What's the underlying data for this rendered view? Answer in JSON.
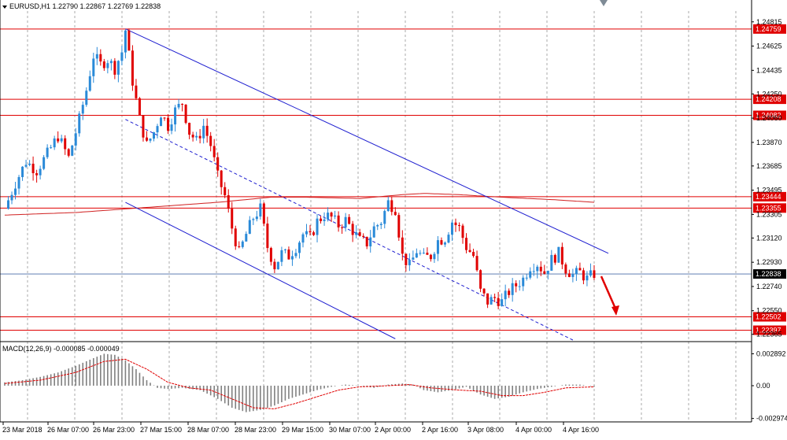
{
  "window": {
    "symbol_label": "EURUSD,H1  1.22790 1.22867 1.22769 1.22838"
  },
  "macd": {
    "label": "MACD(12,26,9) -0.000085 -0.000049"
  },
  "chart_data": [
    {
      "type": "candlestick",
      "symbol": "EURUSD",
      "timeframe": "H1",
      "ohlc_last": {
        "open": 1.2279,
        "high": 1.22867,
        "low": 1.22769,
        "close": 1.22838
      },
      "ylim": [
        1.2232,
        1.249
      ],
      "price_scale_ticks": [
        "1.24815",
        "1.24625",
        "1.24435",
        "1.24250",
        "1.24060",
        "1.23870",
        "1.23685",
        "1.23495",
        "1.23305",
        "1.23120",
        "1.22930",
        "1.22740",
        "1.22550",
        "1.22365"
      ],
      "x_ticks": [
        "23 Mar 2018",
        "26 Mar 07:00",
        "26 Mar 23:00",
        "27 Mar 15:00",
        "28 Mar 07:00",
        "28 Mar 23:00",
        "29 Mar 15:00",
        "30 Mar 07:00",
        "2 Apr 00:00",
        "2 Apr 16:00",
        "3 Apr 08:00",
        "4 Apr 00:00",
        "4 Apr 16:00"
      ],
      "horizontal_levels": [
        {
          "value": "1.24759",
          "price": 1.24759
        },
        {
          "value": "1.24208",
          "price": 1.24208
        },
        {
          "value": "1.24082",
          "price": 1.24082
        },
        {
          "value": "1.23444",
          "price": 1.23444
        },
        {
          "value": "1.23355",
          "price": 1.23355
        },
        {
          "value": "1.22502",
          "price": 1.22502
        },
        {
          "value": "1.22397",
          "price": 1.22397
        }
      ],
      "current_price_tag": "1.22838",
      "close_path": [
        [
          0,
          1.2335
        ],
        [
          3,
          1.2355
        ],
        [
          6,
          1.2372
        ],
        [
          9,
          1.2365
        ],
        [
          12,
          1.2378
        ],
        [
          15,
          1.2392
        ],
        [
          18,
          1.2375
        ],
        [
          21,
          1.2405
        ],
        [
          23,
          1.2428
        ],
        [
          25,
          1.2455
        ],
        [
          27,
          1.2448
        ],
        [
          29,
          1.2452
        ],
        [
          31,
          1.2445
        ],
        [
          33,
          1.2458
        ],
        [
          34,
          1.2475
        ],
        [
          35,
          1.2455
        ],
        [
          36,
          1.2435
        ],
        [
          38,
          1.2405
        ],
        [
          40,
          1.2385
        ],
        [
          42,
          1.2395
        ],
        [
          44,
          1.241
        ],
        [
          46,
          1.24
        ],
        [
          48,
          1.2412
        ],
        [
          50,
          1.2418
        ],
        [
          52,
          1.2395
        ],
        [
          54,
          1.2388
        ],
        [
          56,
          1.24
        ],
        [
          58,
          1.2385
        ],
        [
          60,
          1.236
        ],
        [
          62,
          1.2345
        ],
        [
          64,
          1.232
        ],
        [
          66,
          1.23
        ],
        [
          68,
          1.2315
        ],
        [
          70,
          1.2328
        ],
        [
          72,
          1.2335
        ],
        [
          74,
          1.2305
        ],
        [
          76,
          1.229
        ],
        [
          78,
          1.23
        ],
        [
          80,
          1.2298
        ],
        [
          82,
          1.2305
        ],
        [
          84,
          1.2315
        ],
        [
          86,
          1.2312
        ],
        [
          88,
          1.2325
        ],
        [
          90,
          1.233
        ],
        [
          92,
          1.2328
        ],
        [
          94,
          1.2322
        ],
        [
          96,
          1.2326
        ],
        [
          98,
          1.2318
        ],
        [
          100,
          1.231
        ],
        [
          102,
          1.2308
        ],
        [
          104,
          1.232
        ],
        [
          106,
          1.2325
        ],
        [
          108,
          1.234
        ],
        [
          110,
          1.2335
        ],
        [
          112,
          1.2298
        ],
        [
          114,
          1.229
        ],
        [
          116,
          1.2302
        ],
        [
          118,
          1.2296
        ],
        [
          120,
          1.2298
        ],
        [
          122,
          1.231
        ],
        [
          124,
          1.2312
        ],
        [
          126,
          1.2325
        ],
        [
          128,
          1.232
        ],
        [
          130,
          1.2305
        ],
        [
          132,
          1.2298
        ],
        [
          134,
          1.227
        ],
        [
          136,
          1.2262
        ],
        [
          138,
          1.2265
        ],
        [
          140,
          1.2262
        ],
        [
          142,
          1.227
        ],
        [
          144,
          1.2275
        ],
        [
          146,
          1.228
        ],
        [
          148,
          1.229
        ],
        [
          150,
          1.2292
        ],
        [
          152,
          1.2285
        ],
        [
          154,
          1.2295
        ],
        [
          156,
          1.23
        ],
        [
          158,
          1.2288
        ],
        [
          160,
          1.2283
        ],
        [
          162,
          1.2285
        ],
        [
          164,
          1.228
        ],
        [
          166,
          1.2284
        ]
      ],
      "ma_path": [
        [
          0,
          1.233
        ],
        [
          20,
          1.2332
        ],
        [
          40,
          1.2336
        ],
        [
          60,
          1.234
        ],
        [
          75,
          1.2344
        ],
        [
          85,
          1.2344
        ],
        [
          100,
          1.2343
        ],
        [
          112,
          1.2346
        ],
        [
          118,
          1.2347
        ],
        [
          128,
          1.2346
        ],
        [
          140,
          1.2344
        ],
        [
          155,
          1.2342
        ],
        [
          166,
          1.234
        ]
      ],
      "channel_upper": [
        [
          34,
          1.2476
        ],
        [
          170,
          1.23
        ]
      ],
      "channel_mid": [
        [
          34,
          1.2405
        ],
        [
          160,
          1.2232
        ]
      ],
      "channel_lower": [
        [
          34,
          1.234
        ],
        [
          110,
          1.2233
        ]
      ],
      "forecast_arrow": [
        [
          168,
          1.2282
        ],
        [
          172,
          1.2253
        ]
      ],
      "macd_series": {
        "ylim": [
          -0.003,
          0.003
        ],
        "ticks": [
          "0.002892",
          "0.00",
          "-0.002974"
        ],
        "histogram_path": [
          [
            0,
            0.0003
          ],
          [
            5,
            0.0005
          ],
          [
            10,
            0.0008
          ],
          [
            15,
            0.0012
          ],
          [
            20,
            0.0018
          ],
          [
            25,
            0.0025
          ],
          [
            28,
            0.0029
          ],
          [
            31,
            0.0028
          ],
          [
            34,
            0.0023
          ],
          [
            37,
            0.0015
          ],
          [
            40,
            0.0005
          ],
          [
            43,
            -0.0002
          ],
          [
            46,
            -0.0003
          ],
          [
            50,
            -0.0002
          ],
          [
            55,
            -0.0004
          ],
          [
            60,
            -0.0012
          ],
          [
            64,
            -0.002
          ],
          [
            68,
            -0.0024
          ],
          [
            72,
            -0.0022
          ],
          [
            76,
            -0.0018
          ],
          [
            80,
            -0.0012
          ],
          [
            84,
            -0.0008
          ],
          [
            88,
            -0.0004
          ],
          [
            92,
            -0.0001
          ],
          [
            96,
            0.0001
          ],
          [
            100,
            0.0
          ],
          [
            104,
            -0.0002
          ],
          [
            108,
            0.0001
          ],
          [
            112,
            0.0002
          ],
          [
            115,
            0.0001
          ],
          [
            118,
            -0.0004
          ],
          [
            122,
            -0.0006
          ],
          [
            126,
            -0.0004
          ],
          [
            130,
            -0.0001
          ],
          [
            134,
            -0.0008
          ],
          [
            138,
            -0.0012
          ],
          [
            142,
            -0.001
          ],
          [
            146,
            -0.0006
          ],
          [
            150,
            -0.0003
          ],
          [
            154,
            -0.0001
          ],
          [
            158,
            0.0001
          ],
          [
            162,
            0.0001
          ],
          [
            166,
            -0.0001
          ]
        ],
        "signal_path": [
          [
            0,
            0.0002
          ],
          [
            10,
            0.0005
          ],
          [
            20,
            0.0012
          ],
          [
            28,
            0.0022
          ],
          [
            34,
            0.0024
          ],
          [
            40,
            0.0015
          ],
          [
            46,
            0.0003
          ],
          [
            52,
            -0.0002
          ],
          [
            58,
            -0.0004
          ],
          [
            64,
            -0.0012
          ],
          [
            70,
            -0.002
          ],
          [
            76,
            -0.0021
          ],
          [
            82,
            -0.0016
          ],
          [
            88,
            -0.001
          ],
          [
            94,
            -0.0004
          ],
          [
            100,
            -0.0001
          ],
          [
            108,
            0.0
          ],
          [
            114,
            0.0001
          ],
          [
            120,
            -0.0002
          ],
          [
            128,
            -0.0004
          ],
          [
            134,
            -0.0005
          ],
          [
            140,
            -0.0009
          ],
          [
            146,
            -0.0009
          ],
          [
            152,
            -0.0006
          ],
          [
            158,
            -0.0002
          ],
          [
            166,
            -0.0001
          ]
        ]
      }
    }
  ]
}
